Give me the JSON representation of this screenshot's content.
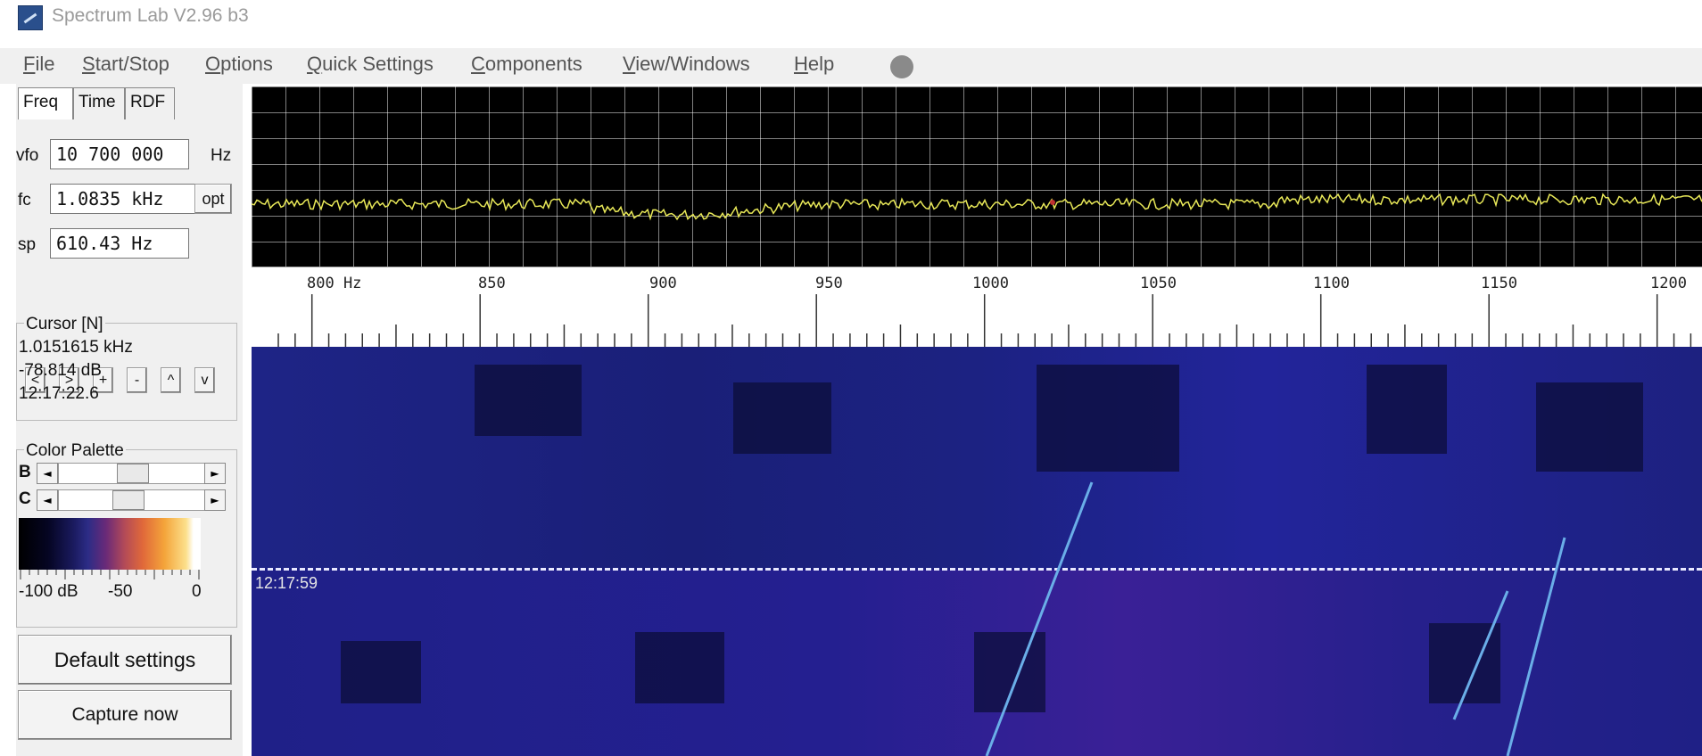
{
  "window": {
    "title": "Spectrum Lab V2.96 b3"
  },
  "menu": [
    {
      "underline": "F",
      "rest": "ile"
    },
    {
      "underline": "S",
      "rest": "tart/Stop"
    },
    {
      "underline": "O",
      "rest": "ptions"
    },
    {
      "underline": "Q",
      "rest": "uick Settings"
    },
    {
      "underline": "C",
      "rest": "omponents"
    },
    {
      "underline": "V",
      "rest": "iew/Windows"
    },
    {
      "underline": "H",
      "rest": "elp"
    }
  ],
  "tabs": [
    "Freq",
    "Time",
    "RDF"
  ],
  "freq_panel": {
    "vfo_label": "vfo",
    "vfo_value": "10 700 000",
    "vfo_unit": "Hz",
    "fc_label": "fc",
    "fc_value": "1.0835 kHz",
    "opt_label": "opt",
    "sp_label": "sp",
    "sp_value": "610.43 Hz",
    "nav_buttons": [
      "<",
      ">",
      "+",
      "-",
      "^",
      "v"
    ]
  },
  "cursor": {
    "title": "Cursor [N]",
    "freq": "1.0151615 kHz",
    "level": "-78.814 dB",
    "time": "12:17:22.6"
  },
  "palette": {
    "title": "Color Palette",
    "b_label": "B",
    "c_label": "C",
    "b_value": 0.45,
    "c_value": 0.42,
    "scale": [
      "-100 dB",
      "-50",
      "0"
    ]
  },
  "buttons": {
    "default_settings": "Default settings",
    "capture_now": "Capture now"
  },
  "spectrum": {
    "axis_labels": [
      "800 Hz",
      "850",
      "900",
      "950",
      "1000",
      "1050",
      "1100",
      "1150",
      "1200"
    ],
    "trace_color": "#e8e858"
  },
  "waterfall": {
    "timestamp": "12:17:59"
  }
}
